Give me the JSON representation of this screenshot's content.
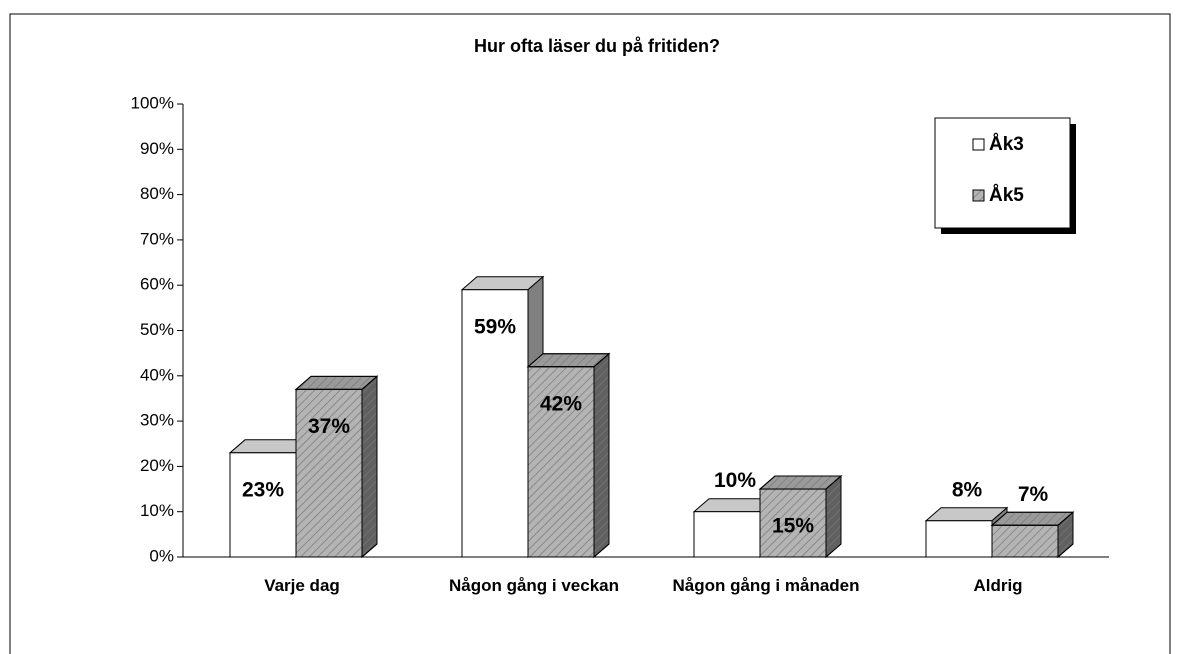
{
  "chart_data": {
    "type": "bar3d",
    "title": "Hur ofta läser du på fritiden?",
    "categories": [
      "Varje dag",
      "Någon gång i veckan",
      "Någon gång i månaden",
      "Aldrig"
    ],
    "series": [
      {
        "name": "Åk3",
        "color": "#ffffff",
        "values": [
          23,
          59,
          10,
          8
        ],
        "value_labels": [
          "23%",
          "59%",
          "10%",
          "8%"
        ]
      },
      {
        "name": "Åk5",
        "color": "#b4b4b4",
        "values": [
          37,
          42,
          15,
          7
        ],
        "value_labels": [
          "37%",
          "42%",
          "15%",
          "7%"
        ]
      }
    ],
    "ylim": [
      0,
      100
    ],
    "yticks": [
      {
        "value": 0,
        "label": "0%"
      },
      {
        "value": 10,
        "label": "10%"
      },
      {
        "value": 20,
        "label": "20%"
      },
      {
        "value": 30,
        "label": "30%"
      },
      {
        "value": 40,
        "label": "40%"
      },
      {
        "value": 50,
        "label": "50%"
      },
      {
        "value": 60,
        "label": "60%"
      },
      {
        "value": 70,
        "label": "70%"
      },
      {
        "value": 80,
        "label": "80%"
      },
      {
        "value": 90,
        "label": "90%"
      },
      {
        "value": 100,
        "label": "100%"
      }
    ],
    "grid": false,
    "legend": "top-right"
  }
}
